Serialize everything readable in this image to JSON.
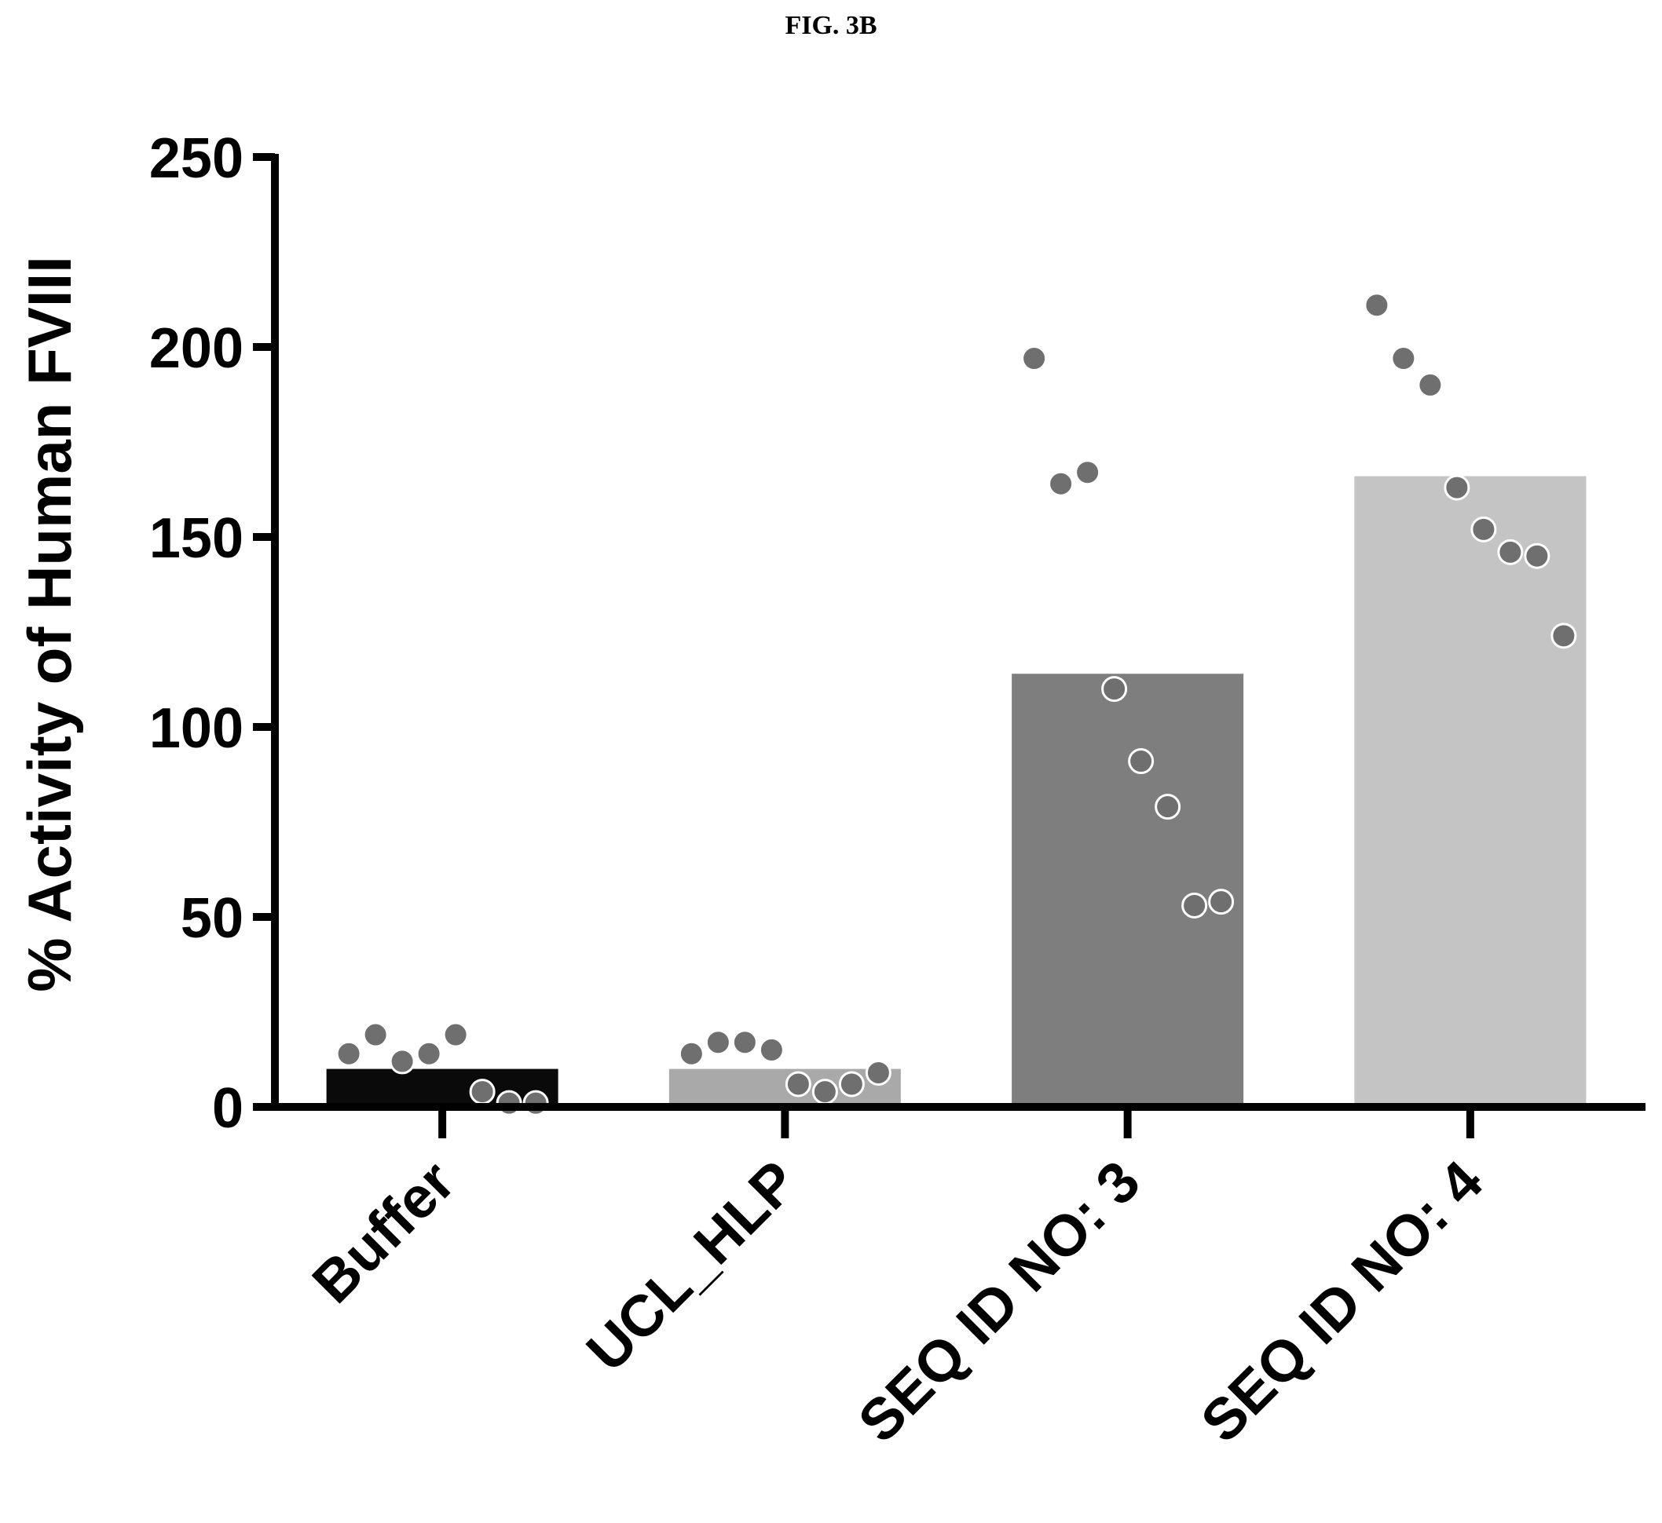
{
  "figure_label": "FIG. 3B",
  "chart_data": {
    "type": "bar",
    "title": "",
    "xlabel": "",
    "ylabel": "% Activity of  Human FVIII",
    "ylim": [
      0,
      250
    ],
    "yticks": [
      0,
      50,
      100,
      150,
      200,
      250
    ],
    "grid": false,
    "categories": [
      "Buffer",
      "UCL_HLP",
      "SEQ ID NO: 3",
      "SEQ ID NO: 4"
    ],
    "values": [
      10,
      10,
      114,
      166
    ],
    "bar_colors": [
      "#0a0a0a",
      "#a9a9a9",
      "#7e7e7e",
      "#c4c4c4"
    ],
    "points": [
      [
        14,
        19,
        12,
        14,
        19,
        4,
        1,
        1
      ],
      [
        14,
        17,
        17,
        15,
        6,
        4,
        6,
        9
      ],
      [
        197,
        164,
        167,
        110,
        91,
        79,
        53,
        54
      ],
      [
        211,
        197,
        190,
        163,
        152,
        146,
        145,
        124
      ]
    ],
    "point_color": "#6f6f6f"
  }
}
